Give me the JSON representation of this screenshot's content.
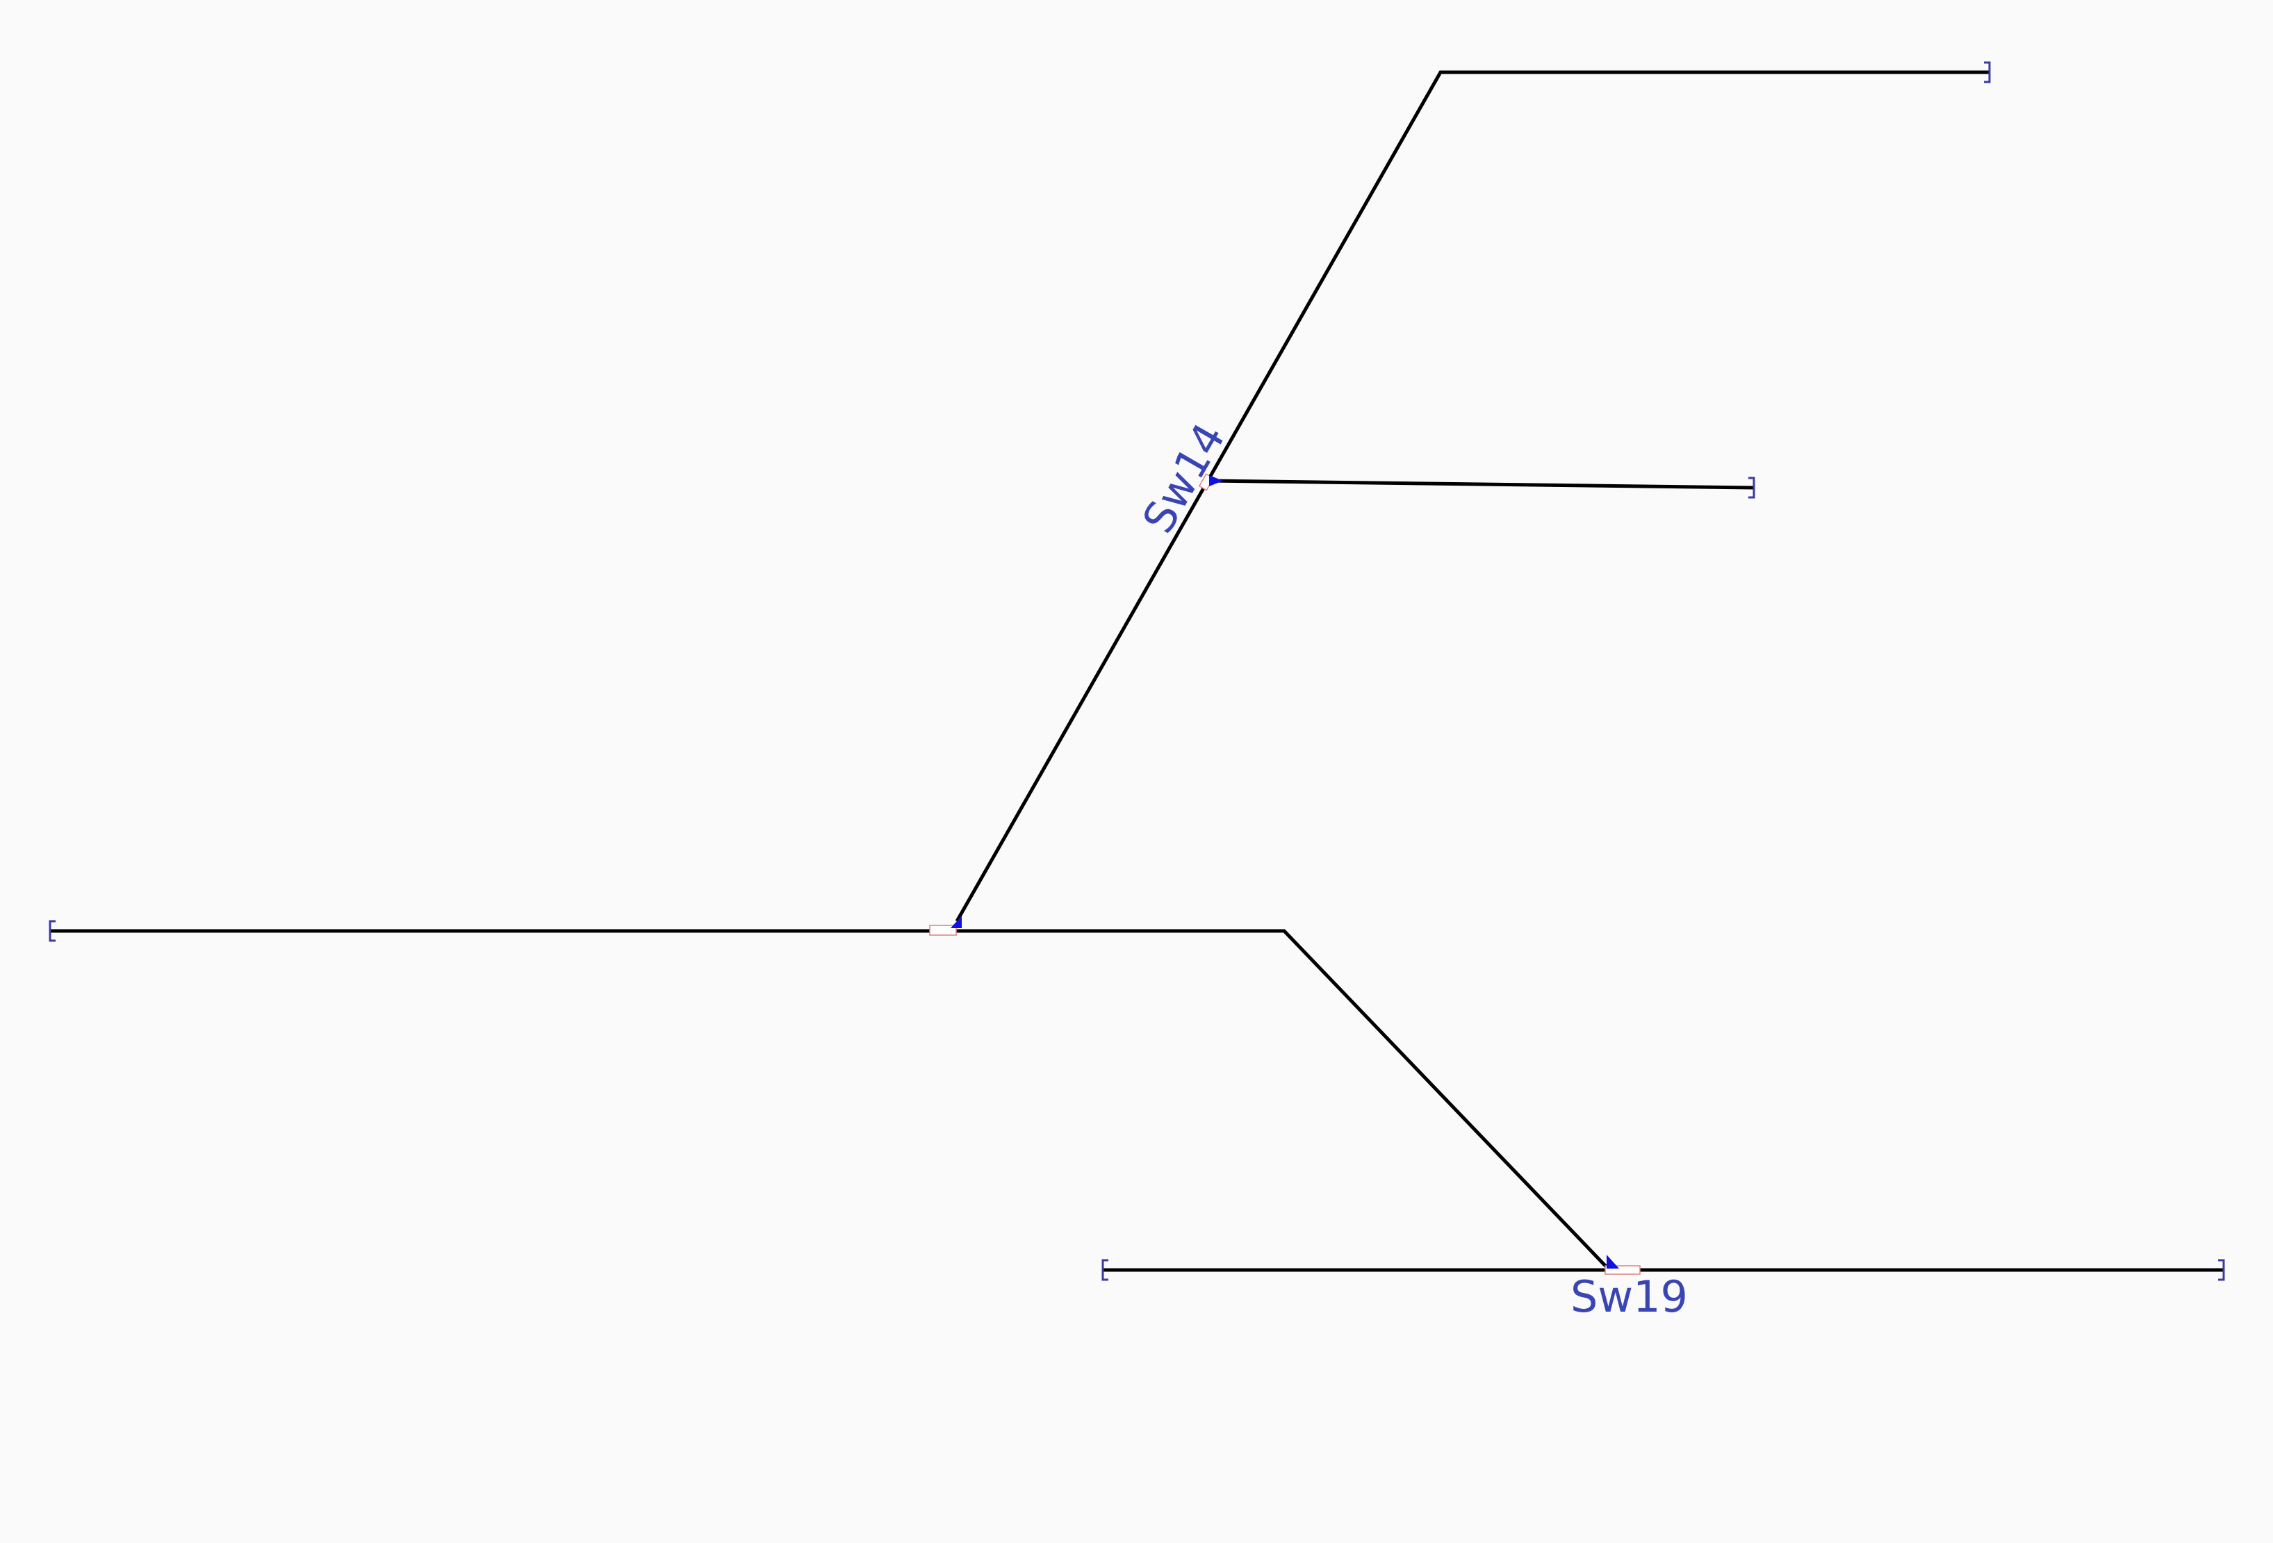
{
  "diagram": {
    "type": "railway-track-layout",
    "colors": {
      "background": "#fafafa",
      "track": "#000000",
      "label": "#3a45b5",
      "end_bracket": "#3a3aa0",
      "switch_marker": "#1010e0"
    },
    "switches": [
      {
        "id": "sw14",
        "label": "Sw14"
      },
      {
        "id": "sw19",
        "label": "Sw19"
      },
      {
        "id": "sw-main",
        "label": ""
      }
    ]
  }
}
